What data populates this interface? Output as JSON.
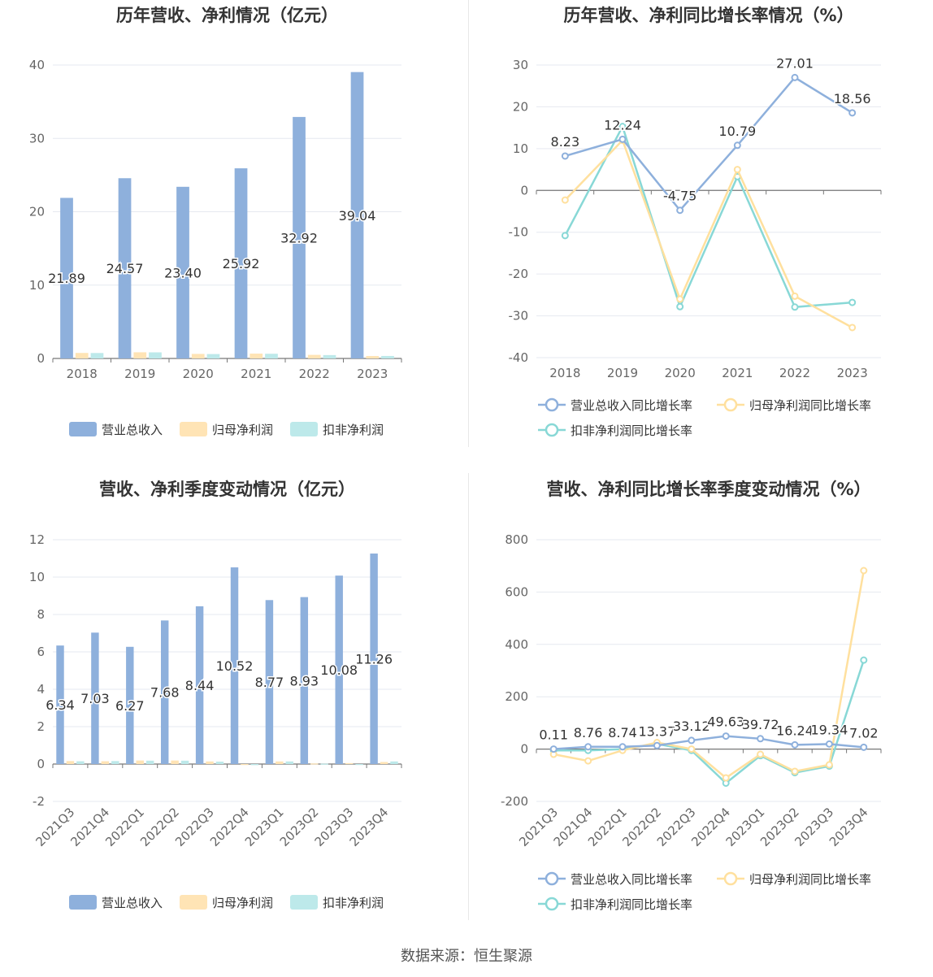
{
  "source_text": "数据来源：恒生聚源",
  "chart_data": [
    {
      "type": "bar",
      "title": "历年营收、净利情况（亿元）",
      "categories": [
        "2018",
        "2019",
        "2020",
        "2021",
        "2022",
        "2023"
      ],
      "ylim": [
        0,
        40
      ],
      "yticks": [
        "0",
        "10",
        "20",
        "30",
        "40"
      ],
      "grid": true,
      "legend_position": "bottom",
      "series": [
        {
          "name": "营业总收入",
          "color": "#8eb0dc",
          "values": [
            21.89,
            24.57,
            23.4,
            25.92,
            32.92,
            39.04
          ]
        },
        {
          "name": "归母净利润",
          "color": "#ffe4b5",
          "values": [
            0.75,
            0.84,
            0.62,
            0.66,
            0.49,
            0.33
          ]
        },
        {
          "name": "扣非净利润",
          "color": "#bde9ea",
          "values": [
            0.74,
            0.83,
            0.6,
            0.64,
            0.46,
            0.34
          ]
        }
      ],
      "data_labels": [
        "21.89",
        "24.57",
        "23.40",
        "25.92",
        "32.92",
        "39.04"
      ]
    },
    {
      "type": "line",
      "title": "历年营收、净利同比增长率情况（%）",
      "categories": [
        "2018",
        "2019",
        "2020",
        "2021",
        "2022",
        "2023"
      ],
      "ylim": [
        -40,
        30
      ],
      "yticks": [
        "30",
        "20",
        "10",
        "0",
        "-10",
        "-20",
        "-30",
        "-40"
      ],
      "grid": true,
      "legend_position": "bottom",
      "series": [
        {
          "name": "营业总收入同比增长率",
          "color": "#8eb0dc",
          "values": [
            8.23,
            12.24,
            -4.75,
            10.79,
            27.01,
            18.56
          ]
        },
        {
          "name": "归母净利润同比增长率",
          "color": "#ffe09e",
          "values": [
            -2.3,
            12.0,
            -26.0,
            5.0,
            -25.3,
            -32.8
          ]
        },
        {
          "name": "扣非净利润同比增长率",
          "color": "#88d8d6",
          "values": [
            -10.8,
            15.3,
            -27.8,
            3.3,
            -27.9,
            -26.8
          ]
        }
      ],
      "data_labels": [
        "8.23",
        "12.24",
        "-4.75",
        "10.79",
        "27.01",
        "18.56"
      ]
    },
    {
      "type": "bar",
      "title": "营收、净利季度变动情况（亿元）",
      "categories": [
        "2021Q3",
        "2021Q4",
        "2022Q1",
        "2022Q2",
        "2022Q3",
        "2022Q4",
        "2023Q1",
        "2023Q2",
        "2023Q3",
        "2023Q4"
      ],
      "ylim": [
        -2,
        12
      ],
      "yticks": [
        "12",
        "10",
        "8",
        "6",
        "4",
        "2",
        "0",
        "-2"
      ],
      "grid": true,
      "legend_position": "bottom",
      "series": [
        {
          "name": "营业总收入",
          "color": "#8eb0dc",
          "values": [
            6.34,
            7.03,
            6.27,
            7.68,
            8.44,
            10.52,
            8.77,
            8.93,
            10.08,
            11.26
          ]
        },
        {
          "name": "归母净利润",
          "color": "#ffe4b5",
          "values": [
            0.16,
            0.15,
            0.19,
            0.19,
            0.14,
            -0.05,
            0.14,
            0.03,
            0.05,
            0.11
          ]
        },
        {
          "name": "扣非净利润",
          "color": "#bde9ea",
          "values": [
            0.15,
            0.16,
            0.18,
            0.18,
            0.13,
            -0.06,
            0.14,
            0.02,
            -0.03,
            0.14
          ]
        }
      ],
      "data_labels": [
        "6.34",
        "7.03",
        "6.27",
        "7.68",
        "8.44",
        "10.52",
        "8.77",
        "8.93",
        "10.08",
        "11.26"
      ]
    },
    {
      "type": "line",
      "title": "营收、净利同比增长率季度变动情况（%）",
      "categories": [
        "2021Q3",
        "2021Q4",
        "2022Q1",
        "2022Q2",
        "2022Q3",
        "2022Q4",
        "2023Q1",
        "2023Q2",
        "2023Q3",
        "2023Q4"
      ],
      "ylim": [
        -200,
        800
      ],
      "yticks": [
        "800",
        "600",
        "400",
        "200",
        "0",
        "-200"
      ],
      "grid": true,
      "legend_position": "bottom",
      "series": [
        {
          "name": "营业总收入同比增长率",
          "color": "#8eb0dc",
          "values": [
            0.11,
            8.76,
            8.74,
            13.37,
            33.12,
            49.63,
            39.72,
            16.24,
            19.34,
            7.02
          ]
        },
        {
          "name": "归母净利润同比增长率",
          "color": "#ffe09e",
          "values": [
            -20,
            -45,
            -5,
            25,
            0,
            -110,
            -20,
            -85,
            -60,
            682
          ]
        },
        {
          "name": "扣非净利润同比增长率",
          "color": "#88d8d6",
          "values": [
            -5,
            -5,
            0,
            20,
            -5,
            -130,
            -25,
            -90,
            -65,
            340
          ]
        }
      ],
      "data_labels": [
        "0.11",
        "8.76",
        "8.74",
        "13.37",
        "33.12",
        "49.63",
        "39.72",
        "16.24",
        "19.34",
        "7.02"
      ]
    }
  ]
}
